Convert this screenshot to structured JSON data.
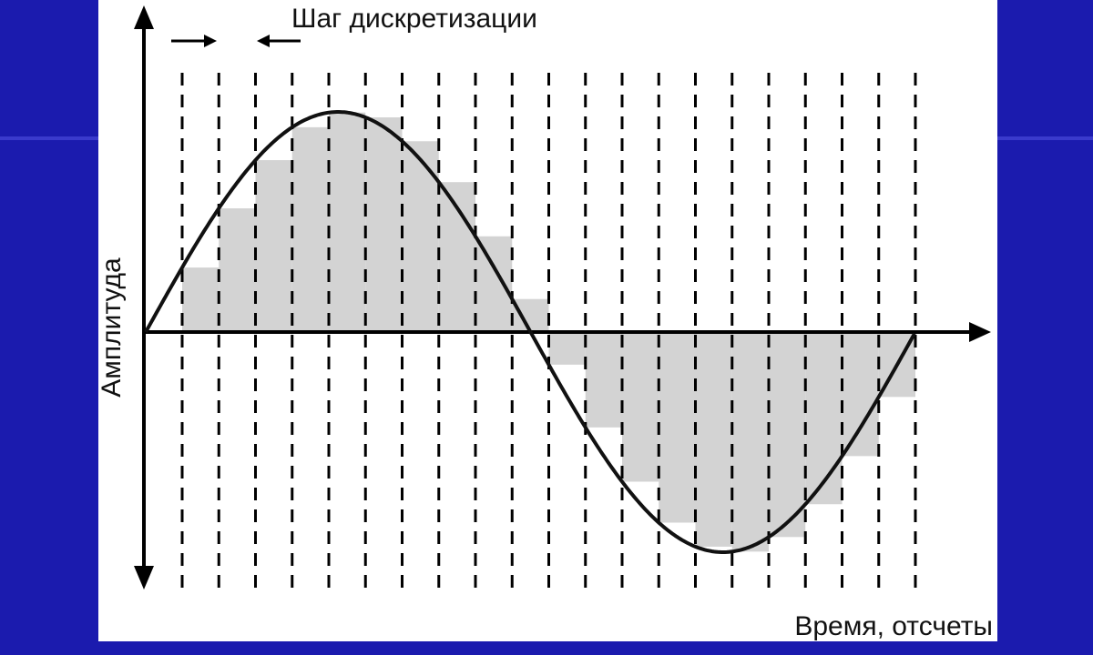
{
  "header": {
    "title": "Шаг дискретизации"
  },
  "axes": {
    "y_label": "Амплитуда",
    "x_label": "Время, отсчеты"
  }
}
